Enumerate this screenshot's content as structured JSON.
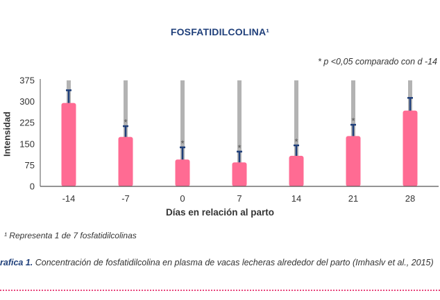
{
  "chart_data": {
    "type": "bar",
    "title": "FOSFATIDILCOLINA¹",
    "note": "* p <0,05 comparado con d -14",
    "xlabel": "Días en relación al parto",
    "ylabel": "Intensidad",
    "categories": [
      "-14",
      "-7",
      "0",
      "7",
      "14",
      "21",
      "28"
    ],
    "values": [
      295,
      175,
      95,
      85,
      108,
      178,
      268
    ],
    "errors": [
      45,
      38,
      43,
      38,
      37,
      40,
      45
    ],
    "significant": [
      false,
      true,
      true,
      true,
      true,
      true,
      false
    ],
    "yticks": [
      0,
      75,
      150,
      225,
      300,
      375
    ],
    "ylim": [
      0,
      375
    ],
    "grid": false,
    "colors": {
      "bar": "#ff6b93",
      "error": "#1f3f7a",
      "reference": "#b3b3b3"
    }
  },
  "footnote": "¹ Representa 1 de 7 fosfatidilcolinas",
  "caption": {
    "label": "rafica 1.",
    "text": " Concentración de fosfatidilcolina en plasma de vacas lecheras alrededor del parto (Imhaslv et al., 2015)"
  }
}
